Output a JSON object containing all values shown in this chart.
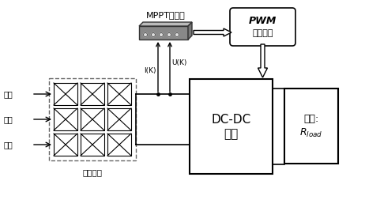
{
  "fig_width": 4.62,
  "fig_height": 2.67,
  "dpi": 100,
  "bg_color": "#ffffff",
  "title": "MPPT控制器",
  "pwm_label_line1": "PWM",
  "pwm_label_line2": "脉宽调制",
  "dcdc_label_line1": "DC-DC",
  "dcdc_label_line2": "电路",
  "load_label_line1": "负载:",
  "load_label_line2": "$R_{load}$",
  "guang_labels": [
    "光照",
    "光照",
    "光照"
  ],
  "solar_label": "光伏电池",
  "uk_label": "U(K)",
  "ik_label": "I(K)",
  "box_edge_color": "#000000",
  "dashed_color": "#666666",
  "mppt_body_color": "#888888",
  "mppt_top_color": "#aaaaaa",
  "dot_color": "#dddddd"
}
